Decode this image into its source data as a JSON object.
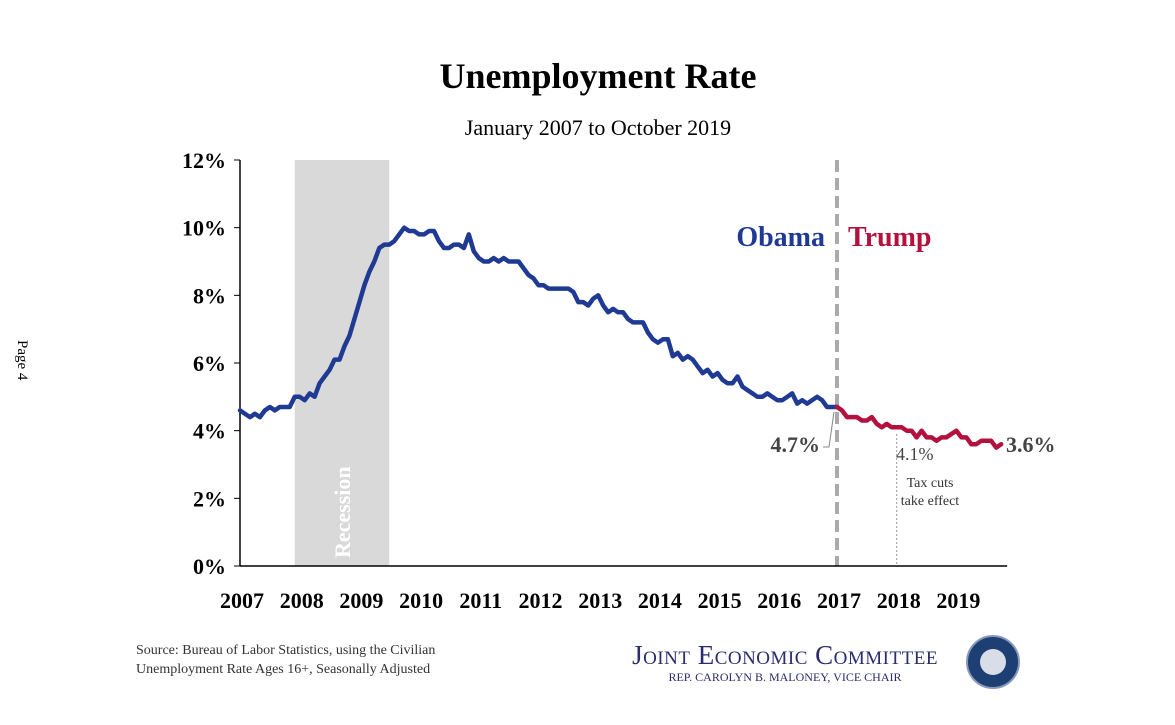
{
  "page_label": "Page 4",
  "source": [
    "Source: Bureau of Labor Statistics, using the Civilian",
    "Unemployment Rate Ages 16+, Seasonally Adjusted"
  ],
  "branding": {
    "title": "Joint Economic Committee",
    "subtitle": "REP. CAROLYN B. MALONEY, VICE CHAIR"
  },
  "chart_data": {
    "type": "line",
    "title": "Unemployment Rate",
    "subtitle": "January 2007 to October 2019",
    "xlabel": "",
    "ylabel": "",
    "ylim": [
      0,
      12
    ],
    "xlim": [
      2007,
      2019.85
    ],
    "y_ticks": [
      "0%",
      "2%",
      "4%",
      "6%",
      "8%",
      "10%",
      "12%"
    ],
    "y_tick_values": [
      0,
      2,
      4,
      6,
      8,
      10,
      12
    ],
    "x_ticks": [
      "2007",
      "2008",
      "2009",
      "2010",
      "2011",
      "2012",
      "2013",
      "2014",
      "2015",
      "2016",
      "2017",
      "2018",
      "2019"
    ],
    "grid": false,
    "start": "2007-01",
    "frequency": "monthly",
    "values": [
      4.6,
      4.5,
      4.4,
      4.5,
      4.4,
      4.6,
      4.7,
      4.6,
      4.7,
      4.7,
      4.7,
      5.0,
      5.0,
      4.9,
      5.1,
      5.0,
      5.4,
      5.6,
      5.8,
      6.1,
      6.1,
      6.5,
      6.8,
      7.3,
      7.8,
      8.3,
      8.7,
      9.0,
      9.4,
      9.5,
      9.5,
      9.6,
      9.8,
      10.0,
      9.9,
      9.9,
      9.8,
      9.8,
      9.9,
      9.9,
      9.6,
      9.4,
      9.4,
      9.5,
      9.5,
      9.4,
      9.8,
      9.3,
      9.1,
      9.0,
      9.0,
      9.1,
      9.0,
      9.1,
      9.0,
      9.0,
      9.0,
      8.8,
      8.6,
      8.5,
      8.3,
      8.3,
      8.2,
      8.2,
      8.2,
      8.2,
      8.2,
      8.1,
      7.8,
      7.8,
      7.7,
      7.9,
      8.0,
      7.7,
      7.5,
      7.6,
      7.5,
      7.5,
      7.3,
      7.2,
      7.2,
      7.2,
      6.9,
      6.7,
      6.6,
      6.7,
      6.7,
      6.2,
      6.3,
      6.1,
      6.2,
      6.1,
      5.9,
      5.7,
      5.8,
      5.6,
      5.7,
      5.5,
      5.4,
      5.4,
      5.6,
      5.3,
      5.2,
      5.1,
      5.0,
      5.0,
      5.1,
      5.0,
      4.9,
      4.9,
      5.0,
      5.1,
      4.8,
      4.9,
      4.8,
      4.9,
      5.0,
      4.9,
      4.7,
      4.7,
      4.7,
      4.6,
      4.4,
      4.4,
      4.4,
      4.3,
      4.3,
      4.4,
      4.2,
      4.1,
      4.2,
      4.1,
      4.1,
      4.1,
      4.0,
      4.0,
      3.8,
      4.0,
      3.8,
      3.8,
      3.7,
      3.8,
      3.8,
      3.9,
      4.0,
      3.8,
      3.8,
      3.6,
      3.6,
      3.7,
      3.7,
      3.7,
      3.5,
      3.6
    ],
    "series": [
      {
        "name": "Obama",
        "start_index": 0,
        "end_index": 120,
        "color": "#1f3a93"
      },
      {
        "name": "Trump",
        "start_index": 120,
        "end_index": 153,
        "color": "#b3123f"
      }
    ],
    "shaded_region": {
      "label": "Recession",
      "from": 2007.917,
      "to": 2009.5,
      "color": "#d9d9d9"
    },
    "vertical_lines": [
      {
        "x": 2017.0,
        "style": "dashed",
        "color": "#aaaaaa"
      },
      {
        "x": 2018.0,
        "style": "dotted",
        "color": "#999999",
        "label": "Tax cuts take effect",
        "label_lines": [
          "Tax cuts",
          "take effect"
        ]
      }
    ],
    "annotations": [
      {
        "text": "4.7%",
        "x": 2017.0,
        "y": 4.7
      },
      {
        "text": "4.1%",
        "x": 2018.0,
        "y": 4.1
      },
      {
        "text": "3.6%",
        "x": 2019.75,
        "y": 3.6
      }
    ],
    "legend": "inline-top-right"
  }
}
